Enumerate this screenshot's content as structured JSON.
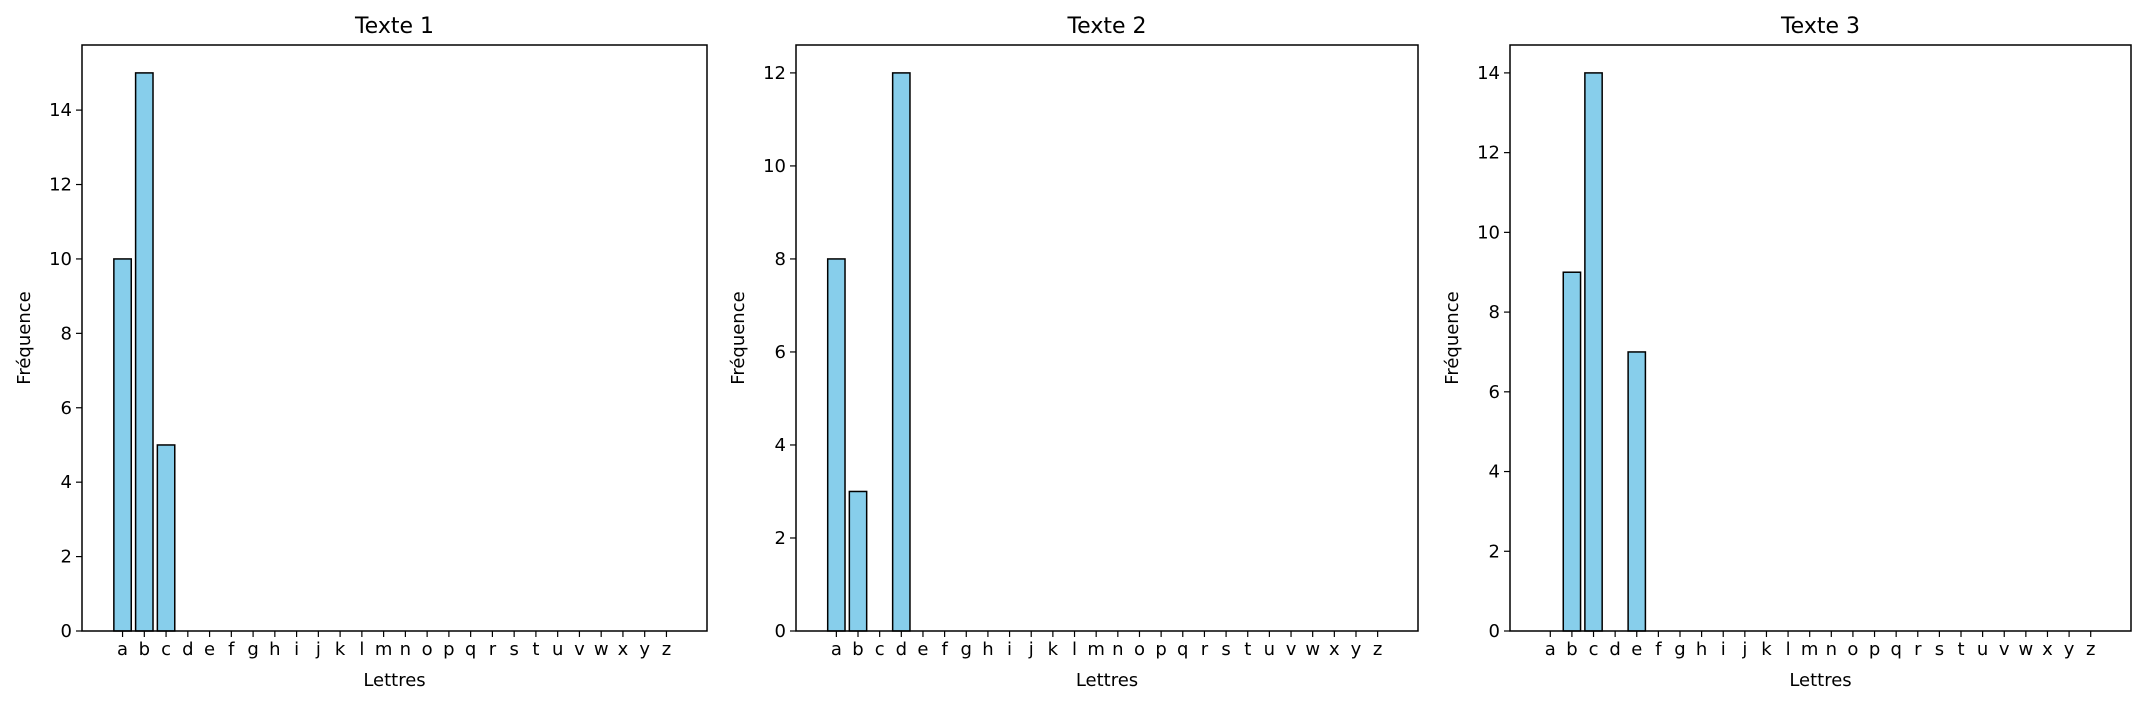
{
  "chart_data": [
    {
      "type": "bar",
      "title": "Texte 1",
      "xlabel": "Lettres",
      "ylabel": "Fréquence",
      "categories": [
        "a",
        "b",
        "c",
        "d",
        "e",
        "f",
        "g",
        "h",
        "i",
        "j",
        "k",
        "l",
        "m",
        "n",
        "o",
        "p",
        "q",
        "r",
        "s",
        "t",
        "u",
        "v",
        "w",
        "x",
        "y",
        "z"
      ],
      "values": [
        10,
        15,
        5,
        0,
        0,
        0,
        0,
        0,
        0,
        0,
        0,
        0,
        0,
        0,
        0,
        0,
        0,
        0,
        0,
        0,
        0,
        0,
        0,
        0,
        0,
        0
      ],
      "ylim": [
        0,
        15.75
      ],
      "yticks": [
        0,
        2,
        4,
        6,
        8,
        10,
        12,
        14
      ],
      "bar_color": "#87CEEB",
      "edge_color": "#000000",
      "grid": false
    },
    {
      "type": "bar",
      "title": "Texte 2",
      "xlabel": "Lettres",
      "ylabel": "Fréquence",
      "categories": [
        "a",
        "b",
        "c",
        "d",
        "e",
        "f",
        "g",
        "h",
        "i",
        "j",
        "k",
        "l",
        "m",
        "n",
        "o",
        "p",
        "q",
        "r",
        "s",
        "t",
        "u",
        "v",
        "w",
        "x",
        "y",
        "z"
      ],
      "values": [
        8,
        3,
        0,
        12,
        0,
        0,
        0,
        0,
        0,
        0,
        0,
        0,
        0,
        0,
        0,
        0,
        0,
        0,
        0,
        0,
        0,
        0,
        0,
        0,
        0,
        0
      ],
      "ylim": [
        0,
        12.6
      ],
      "yticks": [
        0,
        2,
        4,
        6,
        8,
        10,
        12
      ],
      "bar_color": "#87CEEB",
      "edge_color": "#000000",
      "grid": false
    },
    {
      "type": "bar",
      "title": "Texte 3",
      "xlabel": "Lettres",
      "ylabel": "Fréquence",
      "categories": [
        "a",
        "b",
        "c",
        "d",
        "e",
        "f",
        "g",
        "h",
        "i",
        "j",
        "k",
        "l",
        "m",
        "n",
        "o",
        "p",
        "q",
        "r",
        "s",
        "t",
        "u",
        "v",
        "w",
        "x",
        "y",
        "z"
      ],
      "values": [
        0,
        9,
        14,
        0,
        7,
        0,
        0,
        0,
        0,
        0,
        0,
        0,
        0,
        0,
        0,
        0,
        0,
        0,
        0,
        0,
        0,
        0,
        0,
        0,
        0,
        0
      ],
      "ylim": [
        0,
        14.7
      ],
      "yticks": [
        0,
        2,
        4,
        6,
        8,
        10,
        12,
        14
      ],
      "bar_color": "#87CEEB",
      "edge_color": "#000000",
      "grid": false
    }
  ]
}
